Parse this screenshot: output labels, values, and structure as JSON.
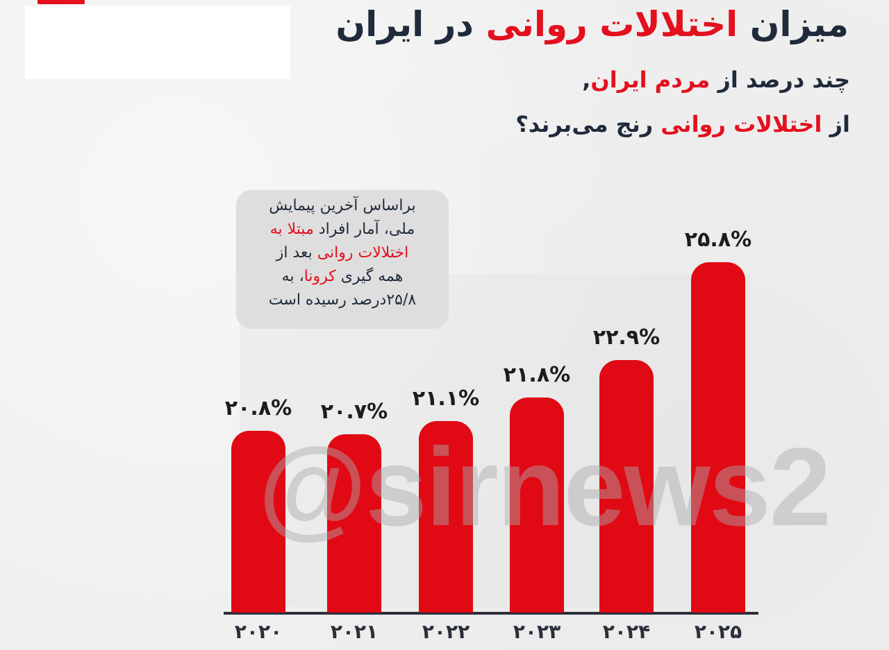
{
  "header": {
    "title_parts": [
      "میزان ",
      "اختلالات روانی",
      " در ایران"
    ],
    "subtitle_line1_parts": [
      "چند درصد از ",
      "مردم ایران",
      ","
    ],
    "subtitle_line2_parts": [
      "از ",
      "اختلالات روانی",
      " رنج می‌برند؟"
    ]
  },
  "note": {
    "line1": "براساس آخرین پیمایش",
    "line2_a": "ملی، آمار افراد ",
    "line2_b": "مبتلا به",
    "line3_a": "اختلالات روانی",
    "line3_b": " بعد از",
    "line4_a": "همه گیری ",
    "line4_b": "کرونا",
    "line4_c": "، به",
    "line5": "۲۵/۸درصد رسیده است"
  },
  "watermark": "@sirnews2",
  "colors": {
    "accent": "#e3101e",
    "bar": "#e10a14",
    "text_dark": "#1f2a3b",
    "background": "#efefef"
  },
  "chart_data": {
    "type": "bar",
    "title": "میزان اختلالات روانی در ایران",
    "subtitle": "چند درصد از مردم ایران، از اختلالات روانی رنج می‌برند؟",
    "categories": [
      "2020",
      "2021",
      "2022",
      "2023",
      "2024",
      "2025"
    ],
    "category_labels": [
      "۲۰۲۰",
      "۲۰۲۱",
      "۲۰۲۲",
      "۲۰۲۳",
      "۲۰۲۴",
      "۲۰۲۵"
    ],
    "values": [
      20.8,
      20.7,
      21.1,
      21.8,
      22.9,
      25.8
    ],
    "data_labels": [
      "۲۰.۸%",
      "۲۰.۷%",
      "۲۱.۱%",
      "۲۱.۸%",
      "۲۲.۹%",
      "۲۵.۸%"
    ],
    "xlabel": "",
    "ylabel": "",
    "grid": false,
    "legend": null,
    "annotation": "براساس آخرین پیمایش ملی، آمار افراد مبتلا به اختلالات روانی بعد از همه گیری کرونا، به ۲۵/۸درصد رسیده است"
  }
}
